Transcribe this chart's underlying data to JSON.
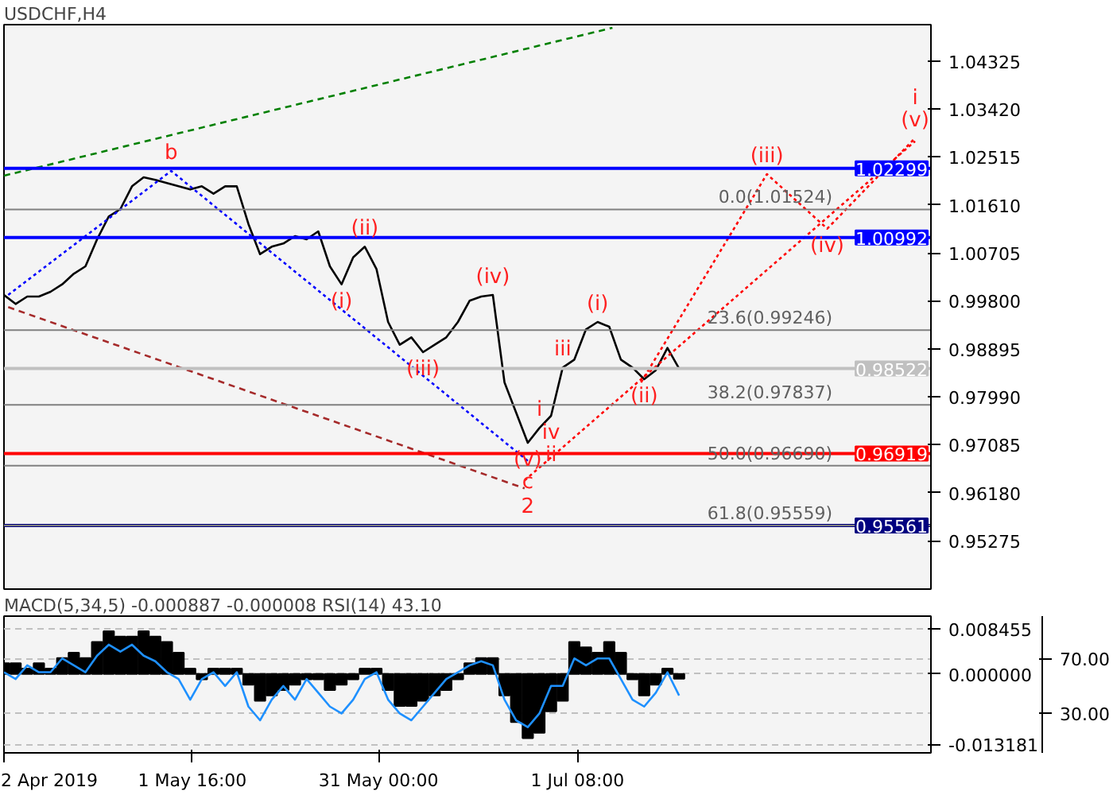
{
  "chart_data": [
    {
      "type": "line",
      "title": "USDCHF,H4",
      "tick_labels": "y",
      "grid": false,
      "xlim": [
        "2019-04-02T00:00",
        "2019-08-26T00:00"
      ],
      "ylim": [
        0.9436,
        1.0501
      ],
      "yticks": [
        {
          "value": 1.04325,
          "label": "1.04325"
        },
        {
          "value": 1.0342,
          "label": "1.03420"
        },
        {
          "value": 1.02515,
          "label": "1.02515"
        },
        {
          "value": 1.0161,
          "label": "1.01610"
        },
        {
          "value": 1.00705,
          "label": "1.00705"
        },
        {
          "value": 0.998,
          "label": "0.99800"
        },
        {
          "value": 0.98895,
          "label": "0.98895"
        },
        {
          "value": 0.9799,
          "label": "0.97990"
        },
        {
          "value": 0.97085,
          "label": "0.97085"
        },
        {
          "value": 0.9618,
          "label": "0.96180"
        },
        {
          "value": 0.95275,
          "label": "0.95275"
        }
      ],
      "x": [
        "2019-04-02T00:00",
        "2019-04-03T20:00",
        "2019-04-05T16:00",
        "2019-04-07T12:00",
        "2019-04-09T08:00",
        "2019-04-11T04:00",
        "2019-04-13T00:00",
        "2019-04-14T20:00",
        "2019-04-16T16:00",
        "2019-04-18T12:00",
        "2019-04-20T08:00",
        "2019-04-22T04:00",
        "2019-04-24T00:00",
        "2019-04-25T20:00",
        "2019-04-27T16:00",
        "2019-04-29T12:00",
        "2019-05-01T08:00",
        "2019-05-03T04:00",
        "2019-05-05T00:00",
        "2019-05-06T20:00",
        "2019-05-08T16:00",
        "2019-05-10T12:00",
        "2019-05-12T08:00",
        "2019-05-14T04:00",
        "2019-05-16T00:00",
        "2019-05-17T20:00",
        "2019-05-19T16:00",
        "2019-05-21T12:00",
        "2019-05-23T08:00",
        "2019-05-25T04:00",
        "2019-05-27T00:00",
        "2019-05-28T20:00",
        "2019-05-30T16:00",
        "2019-06-01T12:00",
        "2019-06-03T08:00",
        "2019-06-05T04:00",
        "2019-06-07T00:00",
        "2019-06-08T20:00",
        "2019-06-10T16:00",
        "2019-06-12T12:00",
        "2019-06-14T08:00",
        "2019-06-16T04:00",
        "2019-06-18T00:00",
        "2019-06-19T20:00",
        "2019-06-21T16:00",
        "2019-06-23T12:00",
        "2019-06-25T08:00",
        "2019-06-27T04:00",
        "2019-06-29T00:00",
        "2019-06-30T20:00",
        "2019-07-02T16:00",
        "2019-07-04T12:00",
        "2019-07-06T08:00",
        "2019-07-08T04:00",
        "2019-07-10T00:00",
        "2019-07-11T20:00",
        "2019-07-13T16:00",
        "2019-07-15T12:00",
        "2019-07-17T08:00"
      ],
      "series": [
        {
          "color": "#000000",
          "line_style": "solid",
          "values": [
            0.9991,
            0.9974,
            0.9988,
            0.9988,
            0.9997,
            1.0011,
            1.0031,
            1.0045,
            1.0096,
            1.0139,
            1.0153,
            1.0196,
            1.0213,
            1.0208,
            1.0202,
            1.0196,
            1.019,
            1.0196,
            1.0182,
            1.0196,
            1.0196,
            1.0125,
            1.0068,
            1.0082,
            1.0088,
            1.0102,
            1.0096,
            1.0111,
            1.0045,
            1.0011,
            1.0062,
            1.0082,
            1.004,
            0.994,
            0.9897,
            0.9911,
            0.9883,
            0.9897,
            0.9911,
            0.994,
            0.998,
            0.9988,
            0.9991,
            0.9826,
            0.9769,
            0.9712,
            0.974,
            0.9763,
            0.9854,
            0.9869,
            0.9926,
            0.994,
            0.9931,
            0.9869,
            0.9854,
            0.9832,
            0.9849,
            0.9891,
            0.9852
          ]
        },
        {
          "color": "#0000ff",
          "line_style": "dotted",
          "x": [
            "2019-04-02T16:00",
            "2019-04-28T08:00",
            "2019-06-23T12:00"
          ],
          "values": [
            0.9991,
            1.0225,
            0.9678
          ]
        },
        {
          "color": "#008000",
          "line_style": "dashed",
          "x": [
            "2019-04-02T00:00",
            "2019-07-06T20:00"
          ],
          "values": [
            1.0216,
            1.0495
          ]
        },
        {
          "color": "#a52a2a",
          "line_style": "dashed",
          "x": [
            "2019-04-02T16:00",
            "2019-06-23T00:00"
          ],
          "values": [
            0.9968,
            0.9626
          ]
        },
        {
          "color": "#ff0000",
          "line_style": "dotted",
          "x": [
            "2019-07-11T08:00",
            "2019-07-31T04:00",
            "2019-08-09T16:00",
            "2019-08-23T12:00"
          ],
          "values": [
            0.9826,
            1.0219,
            1.0116,
            1.0287
          ]
        },
        {
          "color": "#ff0000",
          "line_style": "dotted",
          "x": [
            "2019-06-23T00:00",
            "2019-08-23T12:00"
          ],
          "values": [
            0.9641,
            1.0281
          ]
        }
      ],
      "ref_lines": [
        {
          "axis": "y",
          "value": 1.02299,
          "label": "1.02299",
          "color": "#0000ff",
          "line_style": "solid"
        },
        {
          "axis": "y",
          "value": 1.00992,
          "label": "1.00992",
          "color": "#0000ff",
          "line_style": "solid"
        },
        {
          "axis": "y",
          "value": 0.96919,
          "label": "0.96919",
          "color": "#ff0000",
          "line_style": "solid"
        },
        {
          "axis": "y",
          "value": 0.95561,
          "label": "0.95561",
          "color": "#000080",
          "line_style": "solid"
        },
        {
          "axis": "y",
          "value": 0.98522,
          "label": "0.98522",
          "color": "#c0c0c0",
          "line_style": "solid"
        },
        {
          "axis": "y",
          "value": 1.01524,
          "label": "0.0(1.01524)",
          "color": "#808080",
          "line_style": "solid"
        },
        {
          "axis": "y",
          "value": 0.99246,
          "label": "23.6(0.99246)",
          "color": "#808080",
          "line_style": "solid"
        },
        {
          "axis": "y",
          "value": 0.97837,
          "label": "38.2(0.97837)",
          "color": "#808080",
          "line_style": "solid"
        },
        {
          "axis": "y",
          "value": 0.9669,
          "label": "50.0(0.96690)",
          "color": "#808080",
          "line_style": "solid"
        },
        {
          "axis": "y",
          "value": 0.95559,
          "label": "61.8(0.95559)",
          "color": "#808080",
          "line_style": "solid"
        }
      ],
      "annotations": [
        {
          "text": "b",
          "x": "2019-04-28T08:00",
          "y": 1.0225
        },
        {
          "text": "(i)",
          "x": "2019-05-25T04:00",
          "y": 1.0011
        },
        {
          "text": "(ii)",
          "x": "2019-05-28T20:00",
          "y": 1.0082
        },
        {
          "text": "(iii)",
          "x": "2019-06-07T00:00",
          "y": 0.9883
        },
        {
          "text": "(iv)",
          "x": "2019-06-18T00:00",
          "y": 0.9991
        },
        {
          "text": "(v)",
          "x": "2019-06-23T12:00",
          "y": 0.9712
        },
        {
          "text": "c",
          "x": "2019-06-23T12:00",
          "y": 0.9712
        },
        {
          "text": "2",
          "x": "2019-06-23T12:00",
          "y": 0.9712
        },
        {
          "text": "i",
          "x": "2019-06-25T08:00",
          "y": 0.974
        },
        {
          "text": "iv",
          "x": "2019-06-27T04:00",
          "y": 0.9763
        },
        {
          "text": "ii",
          "x": "2019-06-27T04:00",
          "y": 0.9763
        },
        {
          "text": "iii",
          "x": "2019-06-29T00:00",
          "y": 0.9854
        },
        {
          "text": "(i)",
          "x": "2019-07-04T12:00",
          "y": 0.994
        },
        {
          "text": "(ii)",
          "x": "2019-07-11T20:00",
          "y": 0.9832
        },
        {
          "text": "(iii)",
          "x": "2019-07-31T04:00",
          "y": 1.0219
        },
        {
          "text": "(iv)",
          "x": "2019-08-09T16:00",
          "y": 1.0116
        },
        {
          "text": "(v)",
          "x": "2019-08-23T12:00",
          "y": 1.0287
        },
        {
          "text": "i",
          "x": "2019-08-23T12:00",
          "y": 1.0287
        }
      ]
    },
    {
      "type": "bar",
      "title": "MACD(5,34,5) -0.000887 -0.000008 RSI(14) 43.10",
      "grid": "y",
      "xlim": [
        "2019-04-02T00:00",
        "2019-08-26T00:00"
      ],
      "xticks": [
        {
          "value": "2019-04-02T00:00",
          "label": "2 Apr 2019"
        },
        {
          "value": "2019-05-01T16:00",
          "label": "1 May 16:00"
        },
        {
          "value": "2019-05-31T00:00",
          "label": "31 May 00:00"
        },
        {
          "value": "2019-07-01T08:00",
          "label": "1 Jul 08:00"
        }
      ],
      "x": [
        "2019-04-02T00:00",
        "2019-04-03T20:00",
        "2019-04-05T16:00",
        "2019-04-07T12:00",
        "2019-04-09T08:00",
        "2019-04-11T04:00",
        "2019-04-13T00:00",
        "2019-04-14T20:00",
        "2019-04-16T16:00",
        "2019-04-18T12:00",
        "2019-04-20T08:00",
        "2019-04-22T04:00",
        "2019-04-24T00:00",
        "2019-04-25T20:00",
        "2019-04-27T16:00",
        "2019-04-29T12:00",
        "2019-05-01T08:00",
        "2019-05-03T04:00",
        "2019-05-05T00:00",
        "2019-05-06T20:00",
        "2019-05-08T16:00",
        "2019-05-10T12:00",
        "2019-05-12T08:00",
        "2019-05-14T04:00",
        "2019-05-16T00:00",
        "2019-05-17T20:00",
        "2019-05-19T16:00",
        "2019-05-21T12:00",
        "2019-05-23T08:00",
        "2019-05-25T04:00",
        "2019-05-27T00:00",
        "2019-05-28T20:00",
        "2019-05-30T16:00",
        "2019-06-01T12:00",
        "2019-06-03T08:00",
        "2019-06-05T04:00",
        "2019-06-07T00:00",
        "2019-06-08T20:00",
        "2019-06-10T16:00",
        "2019-06-12T12:00",
        "2019-06-14T08:00",
        "2019-06-16T04:00",
        "2019-06-18T00:00",
        "2019-06-19T20:00",
        "2019-06-21T16:00",
        "2019-06-23T12:00",
        "2019-06-25T08:00",
        "2019-06-27T04:00",
        "2019-06-29T00:00",
        "2019-06-30T20:00",
        "2019-07-02T16:00",
        "2019-07-04T12:00",
        "2019-07-06T08:00",
        "2019-07-08T04:00",
        "2019-07-10T00:00",
        "2019-07-11T20:00",
        "2019-07-13T16:00",
        "2019-07-15T12:00",
        "2019-07-17T08:00"
      ],
      "ylim": [
        -0.01476,
        0.01083
      ],
      "yticks": [
        {
          "value": 0.008455,
          "label": "0.008455"
        },
        {
          "value": 0,
          "label": "0.000000"
        },
        {
          "value": -0.013181,
          "label": "-0.013181"
        }
      ],
      "y2lim": [
        1.3,
        100.8
      ],
      "y2ticks": [
        {
          "value": 70,
          "label": "70.00"
        },
        {
          "value": 30,
          "label": "30.00"
        }
      ],
      "series": [
        {
          "color": "#000000",
          "values": [
            0.002,
            0.002,
            0.001,
            0.002,
            0.001,
            0.003,
            0.004,
            0.003,
            0.006,
            0.008,
            0.007,
            0.007,
            0.008,
            0.007,
            0.006,
            0.004,
            0.001,
            -0.001,
            0.001,
            0.001,
            0.001,
            -0.002,
            -0.005,
            -0.004,
            -0.003,
            -0.002,
            -0.001,
            -0.001,
            -0.003,
            -0.002,
            -0.001,
            0.001,
            0.001,
            -0.003,
            -0.006,
            -0.006,
            -0.005,
            -0.004,
            -0.003,
            -0.001,
            0.002,
            0.003,
            0.003,
            -0.004,
            -0.009,
            -0.012,
            -0.011,
            -0.007,
            -0.005,
            0.006,
            0.005,
            0.004,
            0.006,
            0.004,
            -0.001,
            -0.004,
            -0.002,
            0.001,
            -0.0009
          ]
        },
        {
          "type": "line",
          "axis": "y2",
          "color": "#1e90ff",
          "line_style": "solid",
          "values": [
            60,
            55,
            65,
            60,
            60,
            70,
            65,
            60,
            72,
            80,
            75,
            80,
            72,
            68,
            60,
            55,
            40,
            55,
            60,
            50,
            60,
            35,
            25,
            40,
            50,
            40,
            55,
            45,
            35,
            30,
            40,
            55,
            60,
            40,
            30,
            25,
            35,
            45,
            55,
            60,
            65,
            68,
            65,
            40,
            25,
            20,
            30,
            50,
            50,
            70,
            65,
            70,
            70,
            55,
            40,
            35,
            45,
            60,
            43
          ]
        }
      ]
    }
  ]
}
